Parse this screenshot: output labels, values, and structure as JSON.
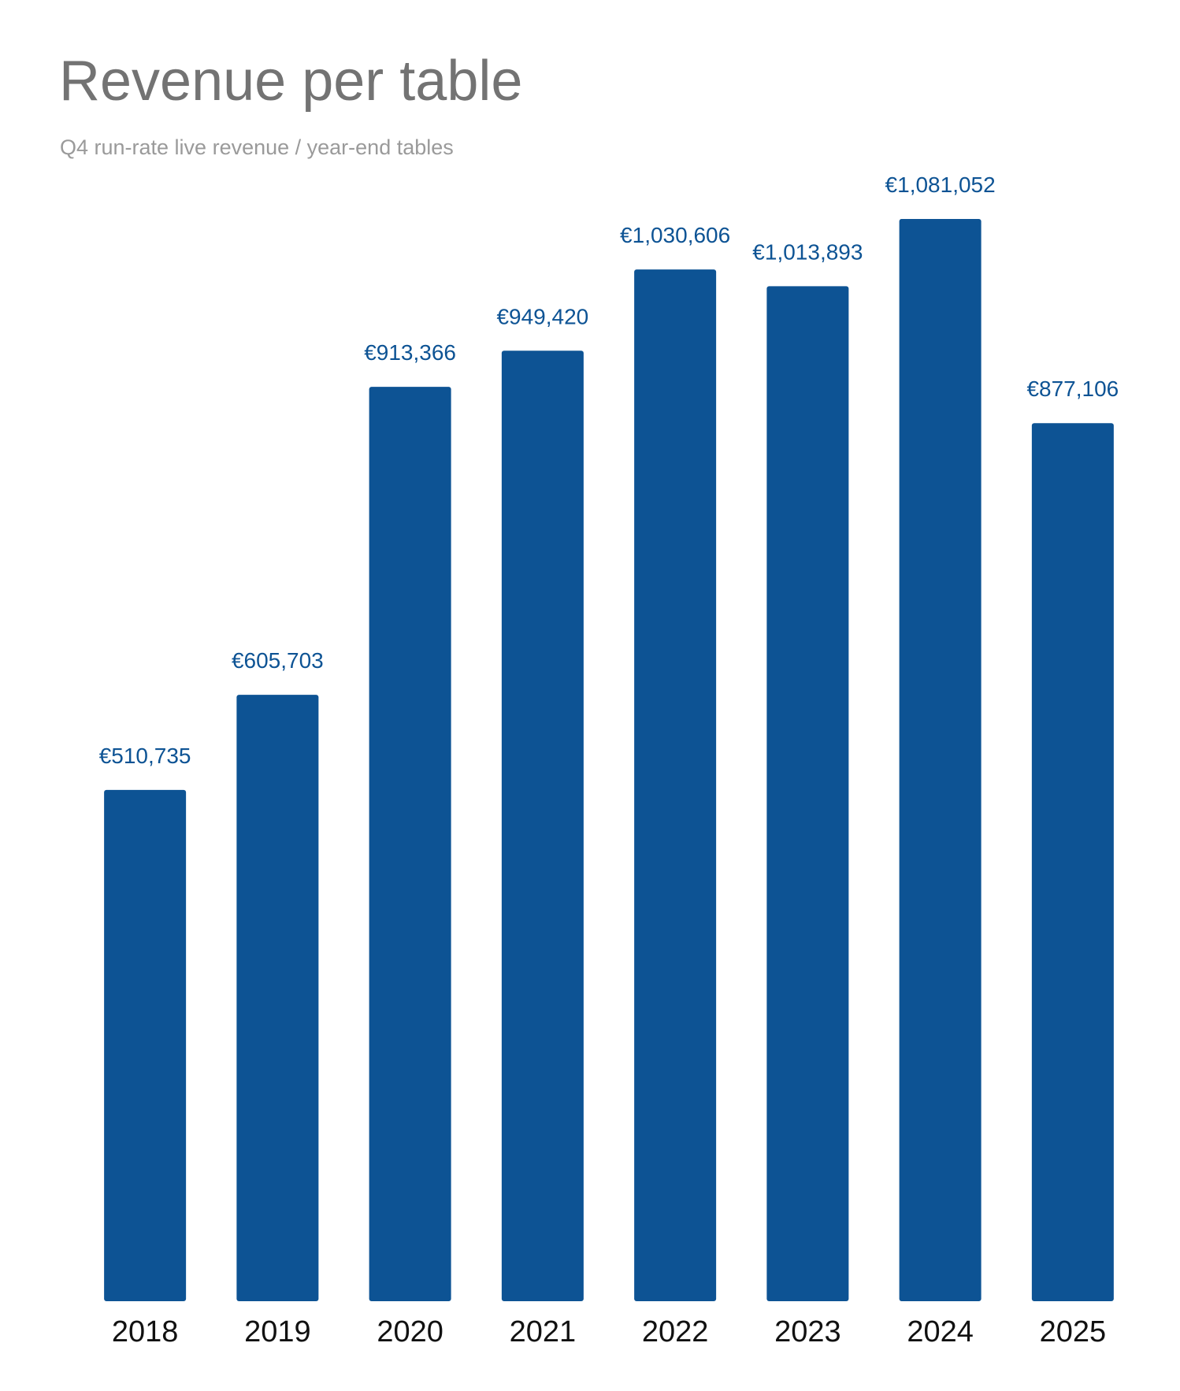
{
  "chart_data": {
    "type": "bar",
    "title": "Revenue per table",
    "subtitle": "Q4 run-rate live revenue / year-end tables",
    "xlabel": "",
    "ylabel": "",
    "categories": [
      "2018",
      "2019",
      "2020",
      "2021",
      "2022",
      "2023",
      "2024",
      "2025"
    ],
    "values": [
      510735,
      605703,
      913366,
      949420,
      1030606,
      1013893,
      1081052,
      877106
    ],
    "data_labels": [
      "€510,735",
      "€605,703",
      "€913,366",
      "€949,420",
      "€1,030,606",
      "€1,013,893",
      "€1,081,052",
      "€877,106"
    ],
    "ylim": [
      0,
      1081052
    ],
    "grid": false,
    "legend": "none",
    "bar_color": "#0d5394",
    "label_color": "#0d5394"
  }
}
